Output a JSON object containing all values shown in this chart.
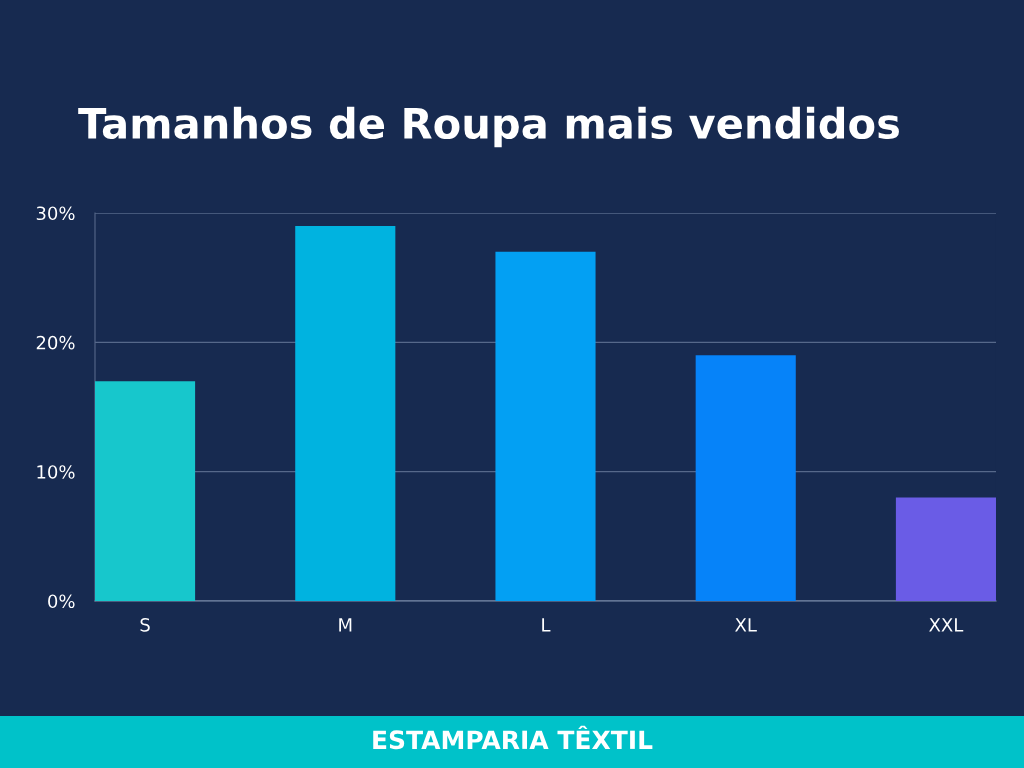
{
  "chart_data": {
    "type": "bar",
    "title": "Tamanhos de Roupa mais vendidos",
    "categories": [
      "S",
      "M",
      "L",
      "XL",
      "XXL"
    ],
    "values": [
      17,
      29,
      27,
      19,
      8
    ],
    "colors": [
      "#17c7cc",
      "#00b3e0",
      "#03a0f3",
      "#0683f9",
      "#6a5ce6"
    ],
    "ylim": [
      0,
      30
    ],
    "yticks": [
      {
        "value": 0,
        "label": "0%"
      },
      {
        "value": 10,
        "label": "10%"
      },
      {
        "value": 20,
        "label": "20%"
      },
      {
        "value": 30,
        "label": "30%"
      }
    ],
    "grid": "y",
    "annotations": [
      "ESTAMPARIA TÊXTIL"
    ]
  }
}
